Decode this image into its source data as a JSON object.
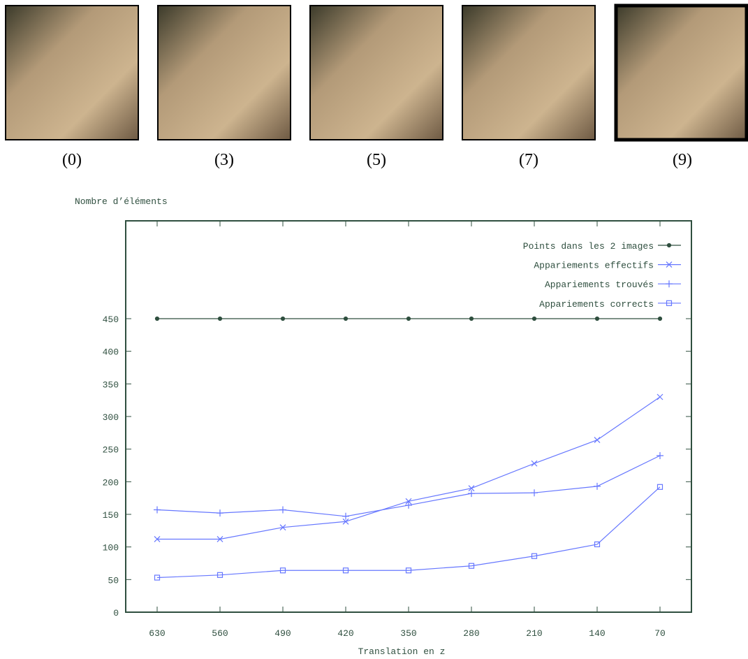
{
  "images": {
    "labels": [
      "(0)",
      "(3)",
      "(5)",
      "(7)",
      "(9)"
    ]
  },
  "chart_data": {
    "type": "line",
    "y_label": "Nombre d’éléments",
    "x_label": "Translation en z",
    "categories": [
      "630",
      "560",
      "490",
      "420",
      "350",
      "280",
      "210",
      "140",
      "70"
    ],
    "ylim": [
      0,
      600
    ],
    "yticks": [
      0,
      50,
      100,
      150,
      200,
      250,
      300,
      350,
      400,
      450
    ],
    "legend": "top-right",
    "series": [
      {
        "name": "Points dans les 2 images",
        "color": "#2f4f3f",
        "marker": "dot",
        "values": [
          450,
          450,
          450,
          450,
          450,
          450,
          450,
          450,
          450
        ]
      },
      {
        "name": "Appariements effectifs",
        "color": "#6677ff",
        "marker": "x",
        "values": [
          112,
          112,
          130,
          139,
          170,
          190,
          228,
          264,
          330
        ]
      },
      {
        "name": "Appariements trouvés",
        "color": "#6677ff",
        "marker": "plus",
        "values": [
          157,
          152,
          157,
          147,
          164,
          182,
          183,
          193,
          240
        ]
      },
      {
        "name": "Appariements corrects",
        "color": "#6677ff",
        "marker": "square",
        "values": [
          53,
          57,
          64,
          64,
          64,
          71,
          86,
          104,
          192
        ]
      }
    ]
  }
}
